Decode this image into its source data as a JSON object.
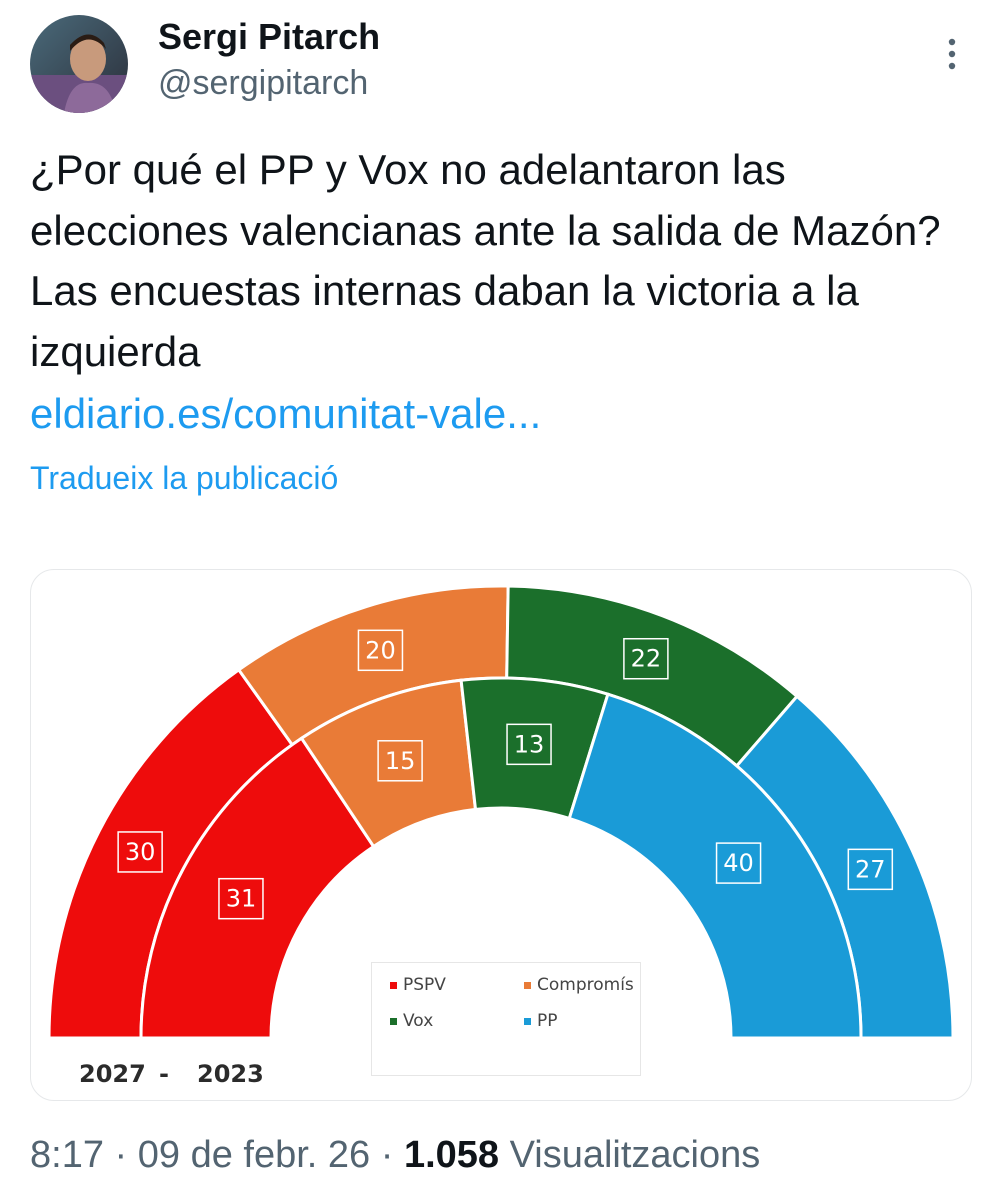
{
  "author": {
    "display_name": "Sergi Pitarch",
    "handle": "@sergipitarch",
    "avatar_icon": "avatar-photo"
  },
  "tweet": {
    "text": "¿Por qué el PP y Vox no adelantaron las elecciones valencianas ante la salida de Mazón? Las encuestas internas daban la victoria a la izquierda",
    "link": "eldiario.es/comunitat-vale...",
    "translate_label": "Tradueix la publicació"
  },
  "meta": {
    "time": "8:17",
    "separator": "·",
    "date": "09 de febr. 26",
    "views": "1.058",
    "views_label": "Visualitzacions"
  },
  "colors": {
    "PSPV": "#ee0c0c",
    "Compromis": "#e97b37",
    "Vox": "#1b6f2b",
    "PP": "#1a9bd7",
    "link": "#1d9bf0"
  },
  "chart_data": {
    "type": "pie",
    "style": "hemicycle",
    "rings": [
      {
        "name": "2027",
        "position": "outer",
        "categories": [
          "PSPV",
          "Compromís",
          "Vox",
          "PP"
        ],
        "values": [
          30,
          20,
          22,
          27
        ]
      },
      {
        "name": "2023",
        "position": "inner",
        "categories": [
          "PSPV",
          "Compromís",
          "Vox",
          "PP"
        ],
        "values": [
          31,
          15,
          13,
          40
        ]
      }
    ],
    "ring_labels": {
      "outer": "2027",
      "separator": "-",
      "inner": "2023"
    },
    "legend": [
      "PSPV",
      "Compromís",
      "Vox",
      "PP"
    ]
  }
}
